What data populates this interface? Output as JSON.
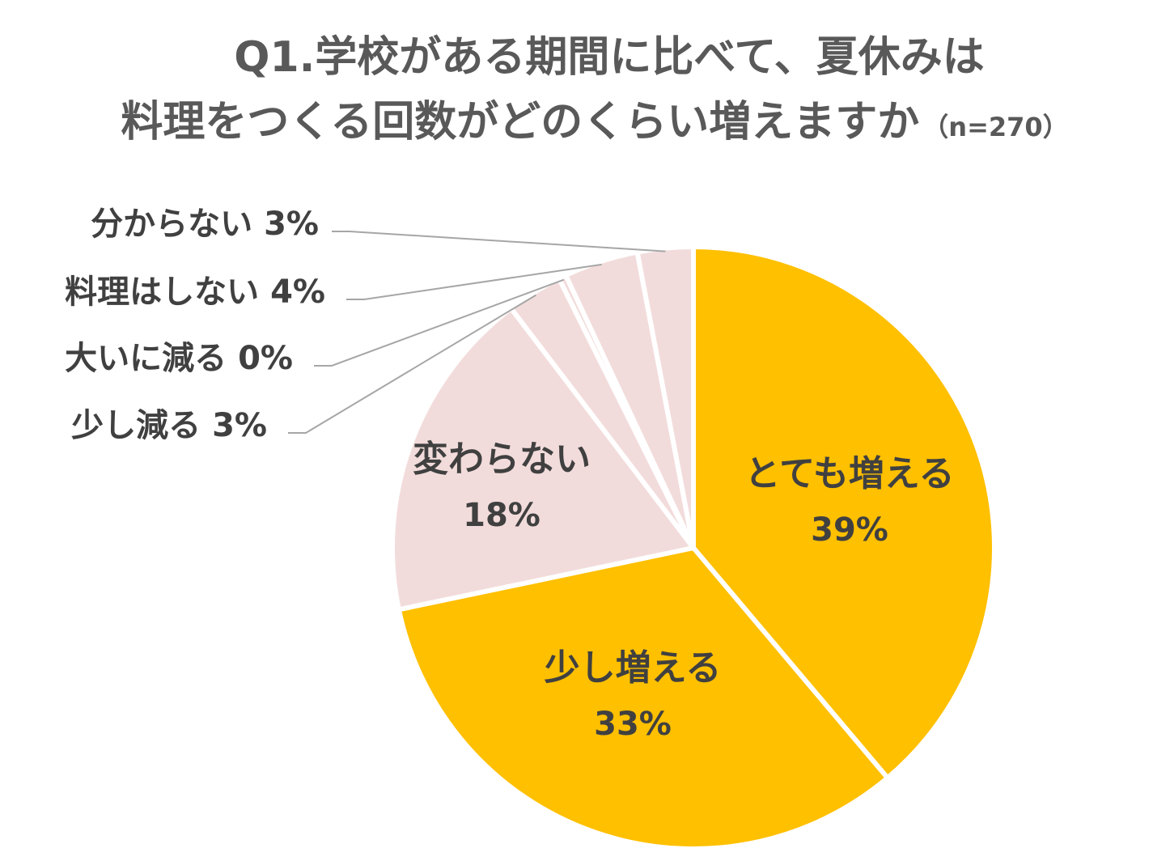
{
  "chart_data": {
    "type": "pie",
    "title_line1": "Q1.学校がある期間に比べて、夏休みは",
    "title_line2": "料理をつくる回数がどのくらい増えますか",
    "sample_size": "（n=270）",
    "start_angle_deg": 0,
    "direction": "clockwise",
    "slices": [
      {
        "label": "とても増える",
        "value": 39,
        "value_label": "39%",
        "color": "#FFC000",
        "label_style": "inside"
      },
      {
        "label": "少し増える",
        "value": 33,
        "value_label": "33%",
        "color": "#FFC000",
        "label_style": "inside"
      },
      {
        "label": "変わらない",
        "value": 18,
        "value_label": "18%",
        "color": "#F2DCDB",
        "label_style": "inside"
      },
      {
        "label": "少し減る",
        "value": 3,
        "value_label": "3%",
        "color": "#F2DCDB",
        "label_style": "outside"
      },
      {
        "label": "大いに減る",
        "value": 0.4,
        "value_label": "0%",
        "color": "#F2DCDB",
        "label_style": "outside"
      },
      {
        "label": "料理はしない",
        "value": 4,
        "value_label": "4%",
        "color": "#F2DCDB",
        "label_style": "outside"
      },
      {
        "label": "分からない",
        "value": 3,
        "value_label": "3%",
        "color": "#F2DCDB",
        "label_style": "outside"
      }
    ]
  }
}
